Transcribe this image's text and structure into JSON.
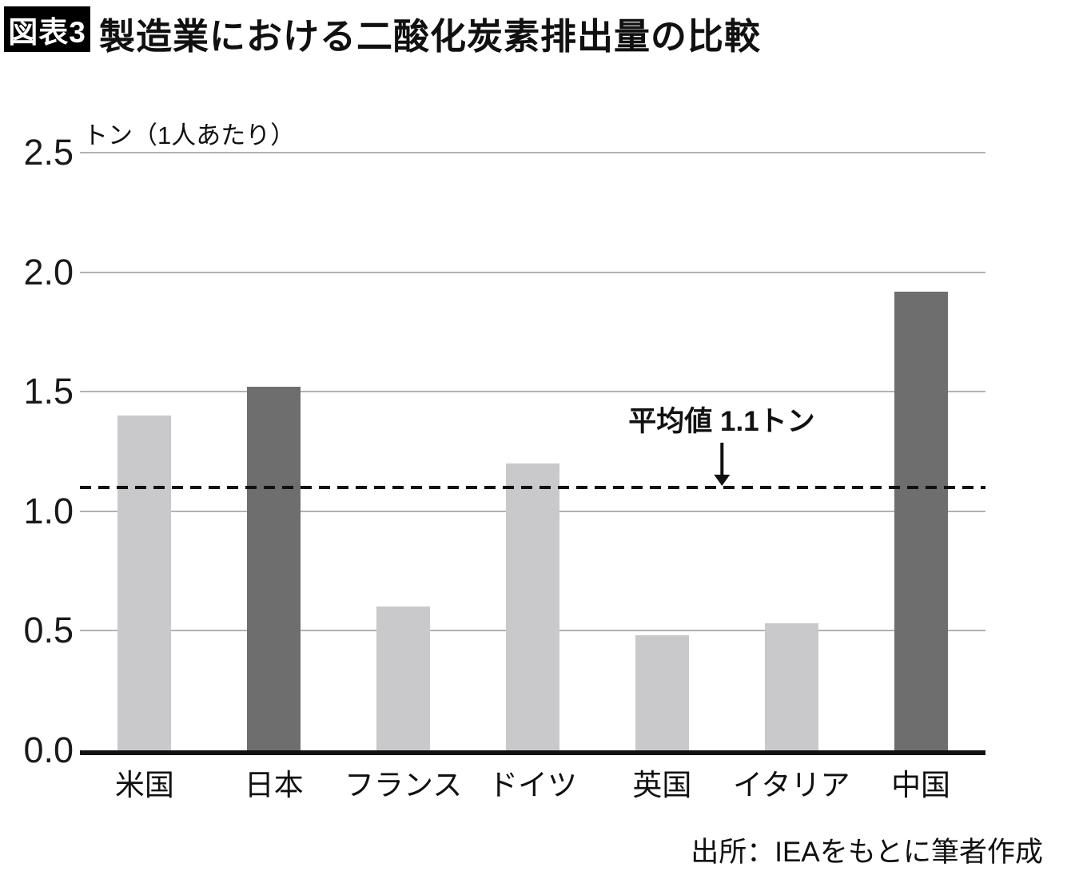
{
  "header": {
    "badge": "図表3",
    "title": "製造業における二酸化炭素排出量の比較"
  },
  "chart_data": {
    "type": "bar",
    "title": "製造業における二酸化炭素排出量の比較",
    "unit_label": "トン（1人あたり）",
    "categories": [
      "米国",
      "日本",
      "フランス",
      "ドイツ",
      "英国",
      "イタリア",
      "中国"
    ],
    "values": [
      1.4,
      1.52,
      0.6,
      1.2,
      0.48,
      0.53,
      1.92
    ],
    "bar_colors": [
      "#c9c9cb",
      "#6e6e6e",
      "#c9c9cb",
      "#c9c9cb",
      "#c9c9cb",
      "#c9c9cb",
      "#6e6e6e"
    ],
    "ylim": [
      0,
      2.5
    ],
    "yticks": [
      "0.0",
      "0.5",
      "1.0",
      "1.5",
      "2.0",
      "2.5"
    ],
    "ytick_values": [
      0.0,
      0.5,
      1.0,
      1.5,
      2.0,
      2.5
    ],
    "grid": true,
    "legend": "none",
    "average_line": {
      "value": 1.1,
      "label": "平均値 1.1トン"
    }
  },
  "footer": {
    "source": "出所：IEAをもとに筆者作成"
  },
  "colors": {
    "bar_light": "#c9c9cb",
    "bar_dark": "#6e6e6e",
    "grid": "#b2b2b2",
    "axis": "#111111",
    "text": "#1a1a1a",
    "badge_bg": "#000000",
    "badge_text": "#ffffff"
  }
}
